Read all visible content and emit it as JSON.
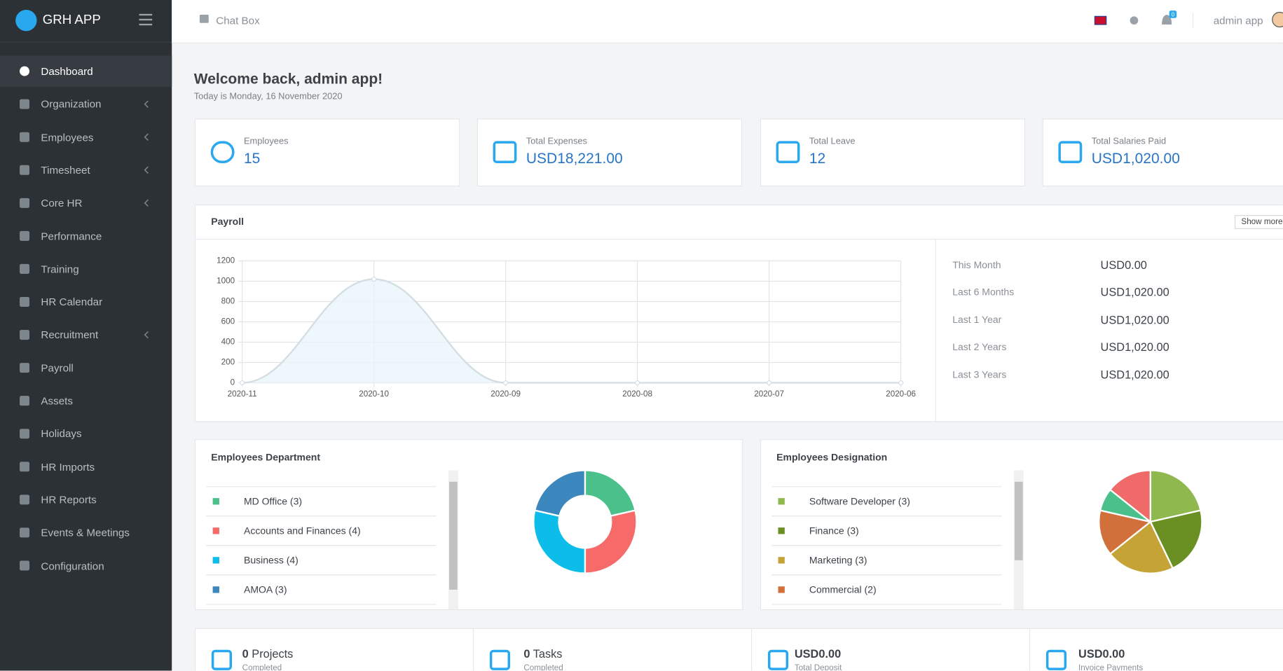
{
  "brand": "GRH APP",
  "topbar": {
    "chat": "Chat Box",
    "notifications": "0",
    "user": "admin app"
  },
  "sidebar": [
    {
      "label": "Dashboard",
      "submenu": false
    },
    {
      "label": "Organization",
      "submenu": true
    },
    {
      "label": "Employees",
      "submenu": true
    },
    {
      "label": "Timesheet",
      "submenu": true
    },
    {
      "label": "Core HR",
      "submenu": true
    },
    {
      "label": "Performance",
      "submenu": false
    },
    {
      "label": "Training",
      "submenu": false
    },
    {
      "label": "HR Calendar",
      "submenu": false
    },
    {
      "label": "Recruitment",
      "submenu": true
    },
    {
      "label": "Payroll",
      "submenu": false
    },
    {
      "label": "Assets",
      "submenu": false
    },
    {
      "label": "Holidays",
      "submenu": false
    },
    {
      "label": "HR Imports",
      "submenu": false
    },
    {
      "label": "HR Reports",
      "submenu": false
    },
    {
      "label": "Events & Meetings",
      "submenu": false
    },
    {
      "label": "Configuration",
      "submenu": false
    }
  ],
  "welcome": {
    "title": "Welcome back, admin app!",
    "date": "Today is Monday, 16 November 2020"
  },
  "stats": [
    {
      "label": "Employees",
      "value": "15"
    },
    {
      "label": "Total Expenses",
      "value": "USD18,221.00"
    },
    {
      "label": "Total Leave",
      "value": "12"
    },
    {
      "label": "Total Salaries Paid",
      "value": "USD1,020.00"
    }
  ],
  "payroll": {
    "title": "Payroll",
    "button": "Show more",
    "chart": {
      "type": "line",
      "categories": [
        "2020-11",
        "2020-10",
        "2020-09",
        "2020-08",
        "2020-07",
        "2020-06"
      ],
      "values": [
        0,
        1020,
        0,
        0,
        0,
        0
      ],
      "ylim": [
        0,
        1200
      ],
      "yticks": [
        0,
        200,
        400,
        600,
        800,
        1000,
        1200
      ],
      "color": "#d3dde4",
      "grid": true
    },
    "summary": [
      {
        "label": "This Month",
        "value": "USD0.00"
      },
      {
        "label": "Last 6 Months",
        "value": "USD1,020.00"
      },
      {
        "label": "Last 1 Year",
        "value": "USD1,020.00"
      },
      {
        "label": "Last 2 Years",
        "value": "USD1,020.00"
      },
      {
        "label": "Last 3 Years",
        "value": "USD1,020.00"
      }
    ]
  },
  "departments": {
    "title": "Employees Department",
    "chart": {
      "type": "donut",
      "categories": [
        "MD Office (3)",
        "Accounts and Finances (4)",
        "Business (4)",
        "AMOA (3)"
      ],
      "values": [
        3,
        4,
        4,
        3
      ],
      "colors": [
        "#4bc08a",
        "#f76a6a",
        "#0bbde8",
        "#3b87be"
      ]
    }
  },
  "designations": {
    "title": "Employees Designation",
    "chart": {
      "type": "pie",
      "categories": [
        "Software Developer (3)",
        "Finance (3)",
        "Marketing (3)",
        "Commercial (2)",
        null,
        null
      ],
      "values": [
        3,
        3,
        3,
        2,
        1,
        2
      ],
      "colors": [
        "#8fb84e",
        "#6a8f23",
        "#c6a336",
        "#d2703b",
        "#4bc08a",
        "#f16a6a"
      ]
    }
  },
  "summary_tiles": [
    {
      "count": "0",
      "label": "Projects",
      "sub": "Completed"
    },
    {
      "count": "0",
      "label": "Tasks",
      "sub": "Completed"
    },
    {
      "count": "USD0.00",
      "sub": "Total Deposit"
    },
    {
      "count": "USD0.00",
      "sub": "Invoice Payments"
    }
  ]
}
